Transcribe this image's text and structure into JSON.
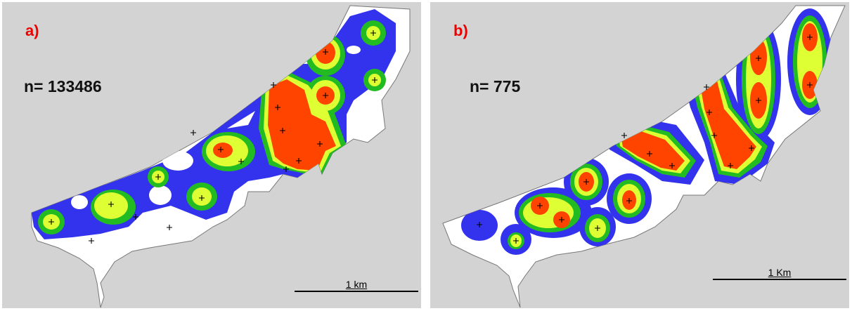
{
  "panels": [
    {
      "label": "a)",
      "n_text": "n= 133486",
      "scale_label": "1 km"
    },
    {
      "label": "b)",
      "n_text": "n= 775",
      "scale_label": "1 Km"
    }
  ],
  "colors": {
    "background": "#d3d3d3",
    "land": "#ffffff",
    "density_low": "#3333ee",
    "density_mid": "#22bb22",
    "density_high": "#ddff33",
    "density_peak": "#ff4400",
    "label": "#ee0000"
  },
  "legend_scale": "kernel density classes: blue < green < yellow < red",
  "point_marker": "plus-icon"
}
